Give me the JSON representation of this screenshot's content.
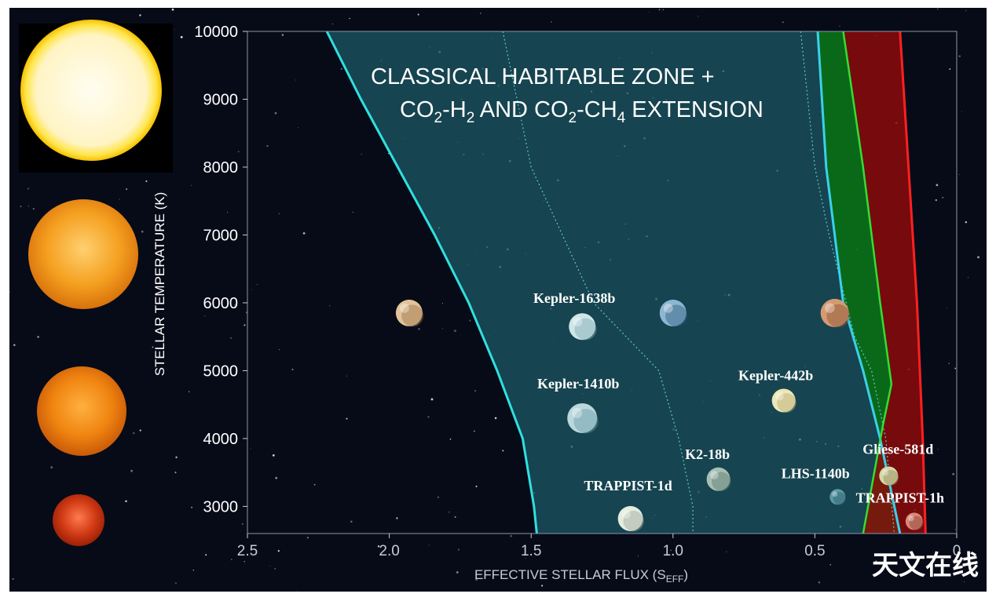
{
  "chart_data": {
    "type": "scatter",
    "title_line1": "CLASSICAL HABITABLE ZONE +",
    "title_line2_parts": [
      "CO",
      "2",
      "-H",
      "2",
      " AND CO",
      "2",
      "-CH",
      "4",
      " EXTENSION"
    ],
    "xlabel_main": "EFFECTIVE STELLAR FLUX (S",
    "xlabel_sub": "EFF",
    "xlabel_close": ")",
    "ylabel": "STELLAR TEMPERATURE (K)",
    "xlim": [
      2.5,
      0
    ],
    "ylim": [
      2600,
      10000
    ],
    "x_ticks": [
      {
        "value": 2.5,
        "label": "2.5"
      },
      {
        "value": 2.0,
        "label": "2.0"
      },
      {
        "value": 1.5,
        "label": "1.5"
      },
      {
        "value": 1.0,
        "label": "1.0"
      },
      {
        "value": 0.5,
        "label": "0.5"
      },
      {
        "value": 0,
        "label": "0"
      }
    ],
    "y_ticks": [
      {
        "value": 10000,
        "label": "10000"
      },
      {
        "value": 9000,
        "label": "9000"
      },
      {
        "value": 8000,
        "label": "8000"
      },
      {
        "value": 7000,
        "label": "7000"
      },
      {
        "value": 6000,
        "label": "6000"
      },
      {
        "value": 5000,
        "label": "5000"
      },
      {
        "value": 4000,
        "label": "4000"
      },
      {
        "value": 3000,
        "label": "3000"
      }
    ],
    "zones": {
      "habitable_color": "#1d5a66",
      "co2_h2_color": "#0b7a1a",
      "co2_ch4_color": "#8a0a0a",
      "inner_edge_color": "#2fe0e0",
      "outer_edge_color": "#3ad0ea",
      "green_edge_color": "#33dd33",
      "red_edge_color": "#ff2020",
      "dotted_color": "#5fc8c8",
      "inner_edge": [
        [
          2.22,
          10000
        ],
        [
          2.1,
          9000
        ],
        [
          1.97,
          8000
        ],
        [
          1.84,
          7000
        ],
        [
          1.72,
          6000
        ],
        [
          1.62,
          5000
        ],
        [
          1.53,
          4000
        ],
        [
          1.49,
          3000
        ],
        [
          1.48,
          2600
        ]
      ],
      "dotted_inner": [
        [
          1.6,
          10000
        ],
        [
          1.5,
          8000
        ],
        [
          1.28,
          6000
        ],
        [
          1.05,
          5000
        ],
        [
          0.98,
          4000
        ],
        [
          0.93,
          3000
        ],
        [
          0.93,
          2600
        ]
      ],
      "outer_edge": [
        [
          0.49,
          10000
        ],
        [
          0.46,
          8000
        ],
        [
          0.4,
          6000
        ],
        [
          0.33,
          5000
        ],
        [
          0.27,
          4000
        ],
        [
          0.2,
          2600
        ]
      ],
      "dotted_outer": [
        [
          0.55,
          10000
        ],
        [
          0.5,
          8000
        ],
        [
          0.45,
          7000
        ],
        [
          0.36,
          5500
        ],
        [
          0.3,
          5000
        ],
        [
          0.25,
          4000
        ],
        [
          0.22,
          2600
        ]
      ],
      "green_edge": [
        [
          0.4,
          10000
        ],
        [
          0.33,
          8000
        ],
        [
          0.27,
          6000
        ],
        [
          0.23,
          4800
        ],
        [
          0.26,
          4200
        ],
        [
          0.33,
          2600
        ]
      ],
      "red_edge": [
        [
          0.2,
          10000
        ],
        [
          0.17,
          8000
        ],
        [
          0.14,
          6000
        ],
        [
          0.12,
          4000
        ],
        [
          0.11,
          2600
        ]
      ]
    },
    "points": [
      {
        "name": "Kepler-1638b",
        "x": 1.32,
        "y": 5650,
        "label_dx": -10,
        "label_dy": -30,
        "r": 17,
        "color": "#cfe6e8",
        "accent": "#7aa8b2"
      },
      {
        "name": "Kepler-1410b",
        "x": 1.32,
        "y": 4300,
        "label_dx": -5,
        "label_dy": -38,
        "r": 19,
        "color": "#b8d8dc",
        "accent": "#6a9aa6"
      },
      {
        "name": "Kepler-442b",
        "x": 0.61,
        "y": 4560,
        "label_dx": -10,
        "label_dy": -26,
        "r": 15,
        "color": "#ece7b8",
        "accent": "#b8a870"
      },
      {
        "name": "K2-18b",
        "x": 0.84,
        "y": 3400,
        "label_dx": -14,
        "label_dy": -26,
        "r": 15,
        "color": "#a8c0b4",
        "accent": "#5c7a6c"
      },
      {
        "name": "TRAPPIST-1d",
        "x": 1.15,
        "y": 2820,
        "label_dx": -3,
        "label_dy": -36,
        "r": 16,
        "color": "#e4ece0",
        "accent": "#9aa89a"
      },
      {
        "name": "LHS-1140b",
        "x": 0.42,
        "y": 3140,
        "label_dx": -28,
        "label_dy": -24,
        "r": 10,
        "color": "#5c9aa8",
        "accent": "#2c5c6a"
      },
      {
        "name": "Gliese-581d",
        "x": 0.24,
        "y": 3450,
        "label_dx": 12,
        "label_dy": -28,
        "r": 12,
        "color": "#d8d6a8",
        "accent": "#8e8a5c"
      },
      {
        "name": "TRAPPIST-1h",
        "x": 0.15,
        "y": 2780,
        "label_dx": -18,
        "label_dy": -24,
        "r": 11,
        "color": "#d88a7a",
        "accent": "#8a3c30"
      }
    ],
    "solar_system": [
      {
        "name": "venus",
        "x": 1.93,
        "y": 5850,
        "r": 17,
        "color": "#e2c49a",
        "accent": "#9c7048"
      },
      {
        "name": "earth",
        "x": 1.0,
        "y": 5850,
        "r": 17,
        "color": "#8fb6d0",
        "accent": "#2e5a82"
      },
      {
        "name": "mars",
        "x": 0.43,
        "y": 5850,
        "r": 18,
        "color": "#d49a72",
        "accent": "#8a5234"
      }
    ]
  },
  "sidebar_stars": [
    {
      "name": "a-type-star",
      "color": "#fff6cf",
      "glow": "#ffe23a"
    },
    {
      "name": "g-type-star",
      "color": "#f6a320",
      "glow": "#ffd070"
    },
    {
      "name": "k-type-star",
      "color": "#f08a14",
      "glow": "#ffb040"
    },
    {
      "name": "m-type-star",
      "color": "#d03a14",
      "glow": "#ff6a3a"
    }
  ],
  "watermark": "天文在线"
}
